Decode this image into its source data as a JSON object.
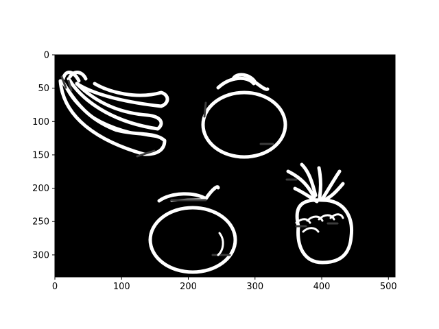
{
  "chart_data": {
    "type": "image",
    "title": "",
    "xlabel": "",
    "ylabel": "",
    "xlim": [
      0,
      510
    ],
    "ylim": [
      333,
      0
    ],
    "x_ticks": [
      0,
      100,
      200,
      300,
      400,
      500
    ],
    "y_ticks": [
      0,
      50,
      100,
      150,
      200,
      250,
      300
    ],
    "grid": false,
    "legend": "none",
    "colors": {
      "image_background": "#000000",
      "outline": "#ffffff",
      "shadow": "#3c3c3c",
      "figure_background": "#ffffff"
    },
    "objects": [
      {
        "name": "banana-outline",
        "x": 85,
        "y": 90
      },
      {
        "name": "apple-outline",
        "x": 285,
        "y": 175
      },
      {
        "name": "tomato-outline",
        "x": 205,
        "y": 330
      },
      {
        "name": "pineapple-outline",
        "x": 410,
        "y": 300
      }
    ]
  }
}
